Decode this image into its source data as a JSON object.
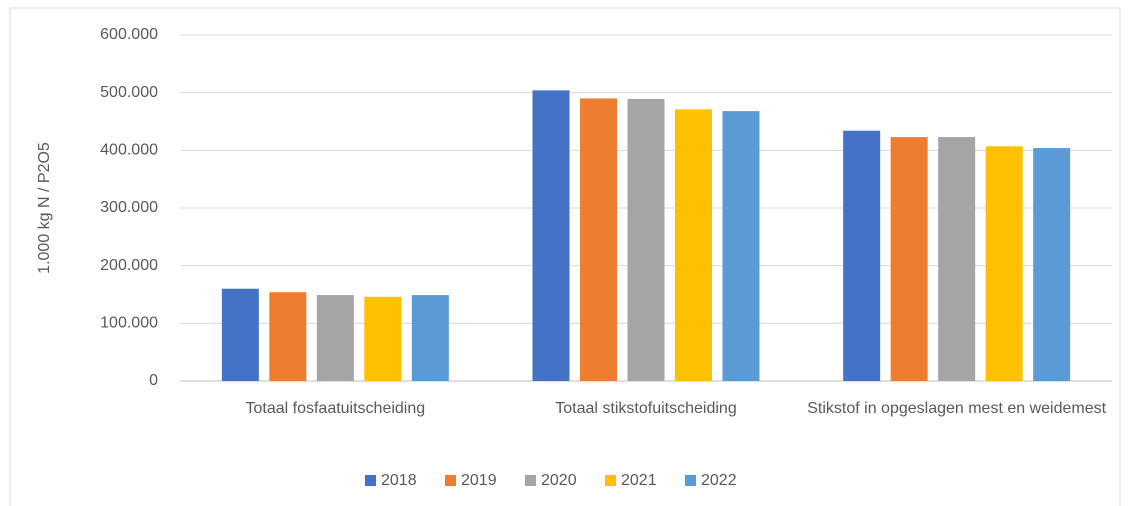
{
  "chart_data": {
    "type": "bar",
    "y_label": "1.000 kg N / P2O5",
    "categories": [
      "Totaal fosfaatuitscheiding",
      "Totaal stikstofuitscheiding",
      "Stikstof in opgeslagen mest en weidemest"
    ],
    "series": [
      {
        "name": "2018",
        "color": "#4472c4",
        "values": [
          160000,
          504000,
          434000
        ]
      },
      {
        "name": "2019",
        "color": "#ed7d31",
        "values": [
          154000,
          490000,
          423000
        ]
      },
      {
        "name": "2020",
        "color": "#a5a5a5",
        "values": [
          149000,
          489000,
          423000
        ]
      },
      {
        "name": "2021",
        "color": "#ffc000",
        "values": [
          146000,
          471000,
          407000
        ]
      },
      {
        "name": "2022",
        "color": "#5b9bd5",
        "values": [
          149000,
          468000,
          404000
        ]
      }
    ],
    "ylim": [
      0,
      600000
    ],
    "yticks": [
      0,
      {
        "value": 100000,
        "label": "100.000"
      },
      {
        "value": 200000,
        "label": "200.000"
      },
      {
        "value": 300000,
        "label": "300.000"
      },
      {
        "value": 400000,
        "label": "400.000"
      },
      {
        "value": 500000,
        "label": "500.000"
      },
      {
        "value": 600000,
        "label": "600.000"
      }
    ],
    "grid": true,
    "legend": "bottom"
  }
}
